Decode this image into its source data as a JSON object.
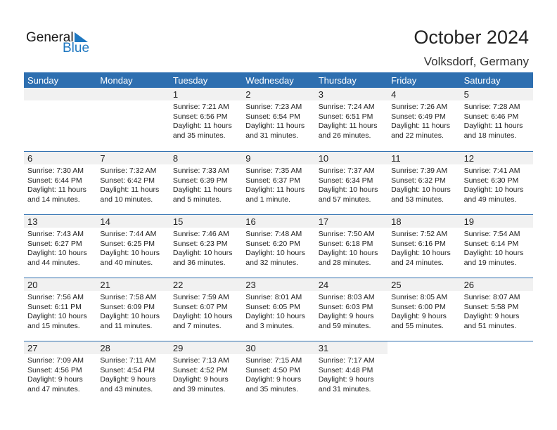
{
  "logo": {
    "general": "General",
    "blue": "Blue"
  },
  "header": {
    "title": "October 2024",
    "location": "Volksdorf, Germany"
  },
  "weekdays": [
    "Sunday",
    "Monday",
    "Tuesday",
    "Wednesday",
    "Thursday",
    "Friday",
    "Saturday"
  ],
  "colors": {
    "accent": "#2e6fb0",
    "strip": "#f1f1f1"
  },
  "first_weekday_index": 2,
  "days": [
    {
      "day": "1",
      "sunrise": "Sunrise: 7:21 AM",
      "sunset": "Sunset: 6:56 PM",
      "daylight1": "Daylight: 11 hours",
      "daylight2": "and 35 minutes."
    },
    {
      "day": "2",
      "sunrise": "Sunrise: 7:23 AM",
      "sunset": "Sunset: 6:54 PM",
      "daylight1": "Daylight: 11 hours",
      "daylight2": "and 31 minutes."
    },
    {
      "day": "3",
      "sunrise": "Sunrise: 7:24 AM",
      "sunset": "Sunset: 6:51 PM",
      "daylight1": "Daylight: 11 hours",
      "daylight2": "and 26 minutes."
    },
    {
      "day": "4",
      "sunrise": "Sunrise: 7:26 AM",
      "sunset": "Sunset: 6:49 PM",
      "daylight1": "Daylight: 11 hours",
      "daylight2": "and 22 minutes."
    },
    {
      "day": "5",
      "sunrise": "Sunrise: 7:28 AM",
      "sunset": "Sunset: 6:46 PM",
      "daylight1": "Daylight: 11 hours",
      "daylight2": "and 18 minutes."
    },
    {
      "day": "6",
      "sunrise": "Sunrise: 7:30 AM",
      "sunset": "Sunset: 6:44 PM",
      "daylight1": "Daylight: 11 hours",
      "daylight2": "and 14 minutes."
    },
    {
      "day": "7",
      "sunrise": "Sunrise: 7:32 AM",
      "sunset": "Sunset: 6:42 PM",
      "daylight1": "Daylight: 11 hours",
      "daylight2": "and 10 minutes."
    },
    {
      "day": "8",
      "sunrise": "Sunrise: 7:33 AM",
      "sunset": "Sunset: 6:39 PM",
      "daylight1": "Daylight: 11 hours",
      "daylight2": "and 5 minutes."
    },
    {
      "day": "9",
      "sunrise": "Sunrise: 7:35 AM",
      "sunset": "Sunset: 6:37 PM",
      "daylight1": "Daylight: 11 hours",
      "daylight2": "and 1 minute."
    },
    {
      "day": "10",
      "sunrise": "Sunrise: 7:37 AM",
      "sunset": "Sunset: 6:34 PM",
      "daylight1": "Daylight: 10 hours",
      "daylight2": "and 57 minutes."
    },
    {
      "day": "11",
      "sunrise": "Sunrise: 7:39 AM",
      "sunset": "Sunset: 6:32 PM",
      "daylight1": "Daylight: 10 hours",
      "daylight2": "and 53 minutes."
    },
    {
      "day": "12",
      "sunrise": "Sunrise: 7:41 AM",
      "sunset": "Sunset: 6:30 PM",
      "daylight1": "Daylight: 10 hours",
      "daylight2": "and 49 minutes."
    },
    {
      "day": "13",
      "sunrise": "Sunrise: 7:43 AM",
      "sunset": "Sunset: 6:27 PM",
      "daylight1": "Daylight: 10 hours",
      "daylight2": "and 44 minutes."
    },
    {
      "day": "14",
      "sunrise": "Sunrise: 7:44 AM",
      "sunset": "Sunset: 6:25 PM",
      "daylight1": "Daylight: 10 hours",
      "daylight2": "and 40 minutes."
    },
    {
      "day": "15",
      "sunrise": "Sunrise: 7:46 AM",
      "sunset": "Sunset: 6:23 PM",
      "daylight1": "Daylight: 10 hours",
      "daylight2": "and 36 minutes."
    },
    {
      "day": "16",
      "sunrise": "Sunrise: 7:48 AM",
      "sunset": "Sunset: 6:20 PM",
      "daylight1": "Daylight: 10 hours",
      "daylight2": "and 32 minutes."
    },
    {
      "day": "17",
      "sunrise": "Sunrise: 7:50 AM",
      "sunset": "Sunset: 6:18 PM",
      "daylight1": "Daylight: 10 hours",
      "daylight2": "and 28 minutes."
    },
    {
      "day": "18",
      "sunrise": "Sunrise: 7:52 AM",
      "sunset": "Sunset: 6:16 PM",
      "daylight1": "Daylight: 10 hours",
      "daylight2": "and 24 minutes."
    },
    {
      "day": "19",
      "sunrise": "Sunrise: 7:54 AM",
      "sunset": "Sunset: 6:14 PM",
      "daylight1": "Daylight: 10 hours",
      "daylight2": "and 19 minutes."
    },
    {
      "day": "20",
      "sunrise": "Sunrise: 7:56 AM",
      "sunset": "Sunset: 6:11 PM",
      "daylight1": "Daylight: 10 hours",
      "daylight2": "and 15 minutes."
    },
    {
      "day": "21",
      "sunrise": "Sunrise: 7:58 AM",
      "sunset": "Sunset: 6:09 PM",
      "daylight1": "Daylight: 10 hours",
      "daylight2": "and 11 minutes."
    },
    {
      "day": "22",
      "sunrise": "Sunrise: 7:59 AM",
      "sunset": "Sunset: 6:07 PM",
      "daylight1": "Daylight: 10 hours",
      "daylight2": "and 7 minutes."
    },
    {
      "day": "23",
      "sunrise": "Sunrise: 8:01 AM",
      "sunset": "Sunset: 6:05 PM",
      "daylight1": "Daylight: 10 hours",
      "daylight2": "and 3 minutes."
    },
    {
      "day": "24",
      "sunrise": "Sunrise: 8:03 AM",
      "sunset": "Sunset: 6:03 PM",
      "daylight1": "Daylight: 9 hours",
      "daylight2": "and 59 minutes."
    },
    {
      "day": "25",
      "sunrise": "Sunrise: 8:05 AM",
      "sunset": "Sunset: 6:00 PM",
      "daylight1": "Daylight: 9 hours",
      "daylight2": "and 55 minutes."
    },
    {
      "day": "26",
      "sunrise": "Sunrise: 8:07 AM",
      "sunset": "Sunset: 5:58 PM",
      "daylight1": "Daylight: 9 hours",
      "daylight2": "and 51 minutes."
    },
    {
      "day": "27",
      "sunrise": "Sunrise: 7:09 AM",
      "sunset": "Sunset: 4:56 PM",
      "daylight1": "Daylight: 9 hours",
      "daylight2": "and 47 minutes."
    },
    {
      "day": "28",
      "sunrise": "Sunrise: 7:11 AM",
      "sunset": "Sunset: 4:54 PM",
      "daylight1": "Daylight: 9 hours",
      "daylight2": "and 43 minutes."
    },
    {
      "day": "29",
      "sunrise": "Sunrise: 7:13 AM",
      "sunset": "Sunset: 4:52 PM",
      "daylight1": "Daylight: 9 hours",
      "daylight2": "and 39 minutes."
    },
    {
      "day": "30",
      "sunrise": "Sunrise: 7:15 AM",
      "sunset": "Sunset: 4:50 PM",
      "daylight1": "Daylight: 9 hours",
      "daylight2": "and 35 minutes."
    },
    {
      "day": "31",
      "sunrise": "Sunrise: 7:17 AM",
      "sunset": "Sunset: 4:48 PM",
      "daylight1": "Daylight: 9 hours",
      "daylight2": "and 31 minutes."
    }
  ]
}
